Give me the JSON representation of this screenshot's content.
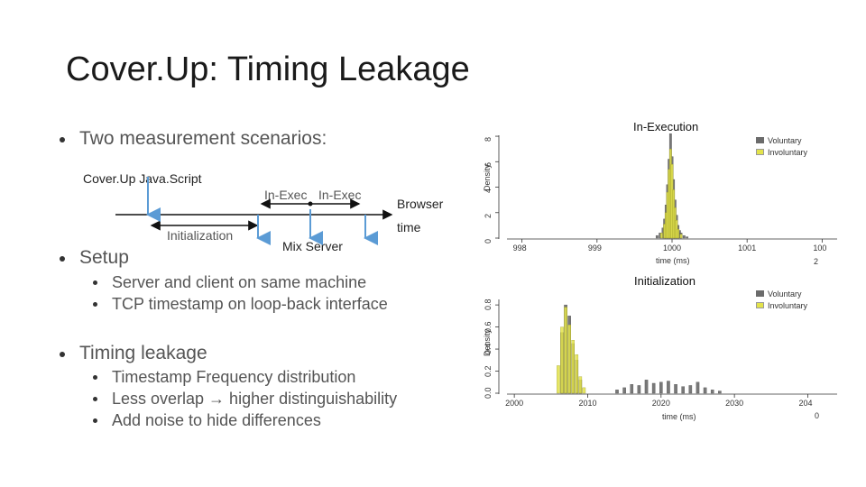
{
  "slide": {
    "title": "Cover.Up: Timing Leakage"
  },
  "bullets": {
    "scenarios": "Two measurement scenarios:",
    "setup": "Setup",
    "setup_items": [
      "Server and client on same machine",
      "TCP timestamp on loop-back interface"
    ],
    "leakage": "Timing leakage",
    "leakage_items": [
      "Timestamp Frequency distribution",
      "Less overlap → higher distinguishability",
      "Add noise to hide differences"
    ]
  },
  "diagram": {
    "coverup_js": "Cover.Up Java.Script",
    "initialization": "Initialization",
    "in_exec_1": "In-Exec",
    "in_exec_2": "In-Exec",
    "mix_server": "Mix Server",
    "browser": "Browser",
    "time": "time",
    "arrow_color": "#5b9bd5"
  },
  "plots": {
    "voluntary_color": "#6b6b6b",
    "involuntary_color": "#e3e34a",
    "top": {
      "title": "In-Execution",
      "ylabel": "Density",
      "xlabel": "time (ms)",
      "yticks": [
        "0",
        "2",
        "4",
        "6",
        "8"
      ],
      "xticks": [
        "998",
        "999",
        "1000",
        "1001",
        "100"
      ],
      "xtick_wrap": "2",
      "legend": [
        "Voluntary",
        "Involuntary"
      ]
    },
    "bottom": {
      "title": "Initialization",
      "ylabel": "Density",
      "xlabel": "time (ms)",
      "yticks": [
        "0.0",
        "0.2",
        "0.4",
        "0.6",
        "0.8"
      ],
      "xticks": [
        "2000",
        "2010",
        "2020",
        "2030",
        "204"
      ],
      "xtick_wrap": "0",
      "legend": [
        "Voluntary",
        "Involuntary"
      ]
    }
  },
  "chart_data": [
    {
      "type": "bar",
      "title": "In-Execution",
      "xlabel": "time (ms)",
      "ylabel": "Density",
      "xlim": [
        997.8,
        1002.2
      ],
      "ylim": [
        0,
        8.5
      ],
      "legend": "top-right",
      "series": [
        {
          "name": "Voluntary",
          "x": [
            999.8,
            999.84,
            999.88,
            999.9,
            999.92,
            999.94,
            999.96,
            999.98,
            1000.0,
            1000.02,
            1000.04,
            1000.06,
            1000.08,
            1000.1,
            1000.12,
            1000.16,
            1000.2
          ],
          "values": [
            0.2,
            0.4,
            0.8,
            1.5,
            2.6,
            4.2,
            6.2,
            8.2,
            6.4,
            4.6,
            3.0,
            1.8,
            1.0,
            0.6,
            0.4,
            0.2,
            0.1
          ]
        },
        {
          "name": "Involuntary",
          "x": [
            999.86,
            999.9,
            999.92,
            999.94,
            999.96,
            999.98,
            1000.0,
            1000.02,
            1000.04,
            1000.06,
            1000.08,
            1000.12
          ],
          "values": [
            0.4,
            1.1,
            2.0,
            3.6,
            5.4,
            7.0,
            5.8,
            3.8,
            2.4,
            1.4,
            0.7,
            0.3
          ]
        }
      ]
    },
    {
      "type": "bar",
      "title": "Initialization",
      "xlabel": "time (ms)",
      "ylabel": "Density",
      "xlim": [
        1999,
        2044
      ],
      "ylim": [
        0,
        0.85
      ],
      "legend": "top-right",
      "series": [
        {
          "name": "Voluntary",
          "x": [
            2006.5,
            2007.0,
            2007.5,
            2008.0,
            2008.5,
            2009.0,
            2014.0,
            2015.0,
            2016.0,
            2017.0,
            2018.0,
            2019.0,
            2020.0,
            2021.0,
            2022.0,
            2023.0,
            2024.0,
            2025.0,
            2026.0,
            2027.0,
            2028.0
          ],
          "values": [
            0.55,
            0.8,
            0.7,
            0.45,
            0.3,
            0.12,
            0.03,
            0.05,
            0.08,
            0.07,
            0.12,
            0.09,
            0.1,
            0.11,
            0.08,
            0.06,
            0.07,
            0.1,
            0.05,
            0.03,
            0.02
          ]
        },
        {
          "name": "Involuntary",
          "x": [
            2006.0,
            2006.5,
            2007.0,
            2007.5,
            2008.0,
            2008.5,
            2009.0,
            2009.5
          ],
          "values": [
            0.25,
            0.6,
            0.78,
            0.62,
            0.48,
            0.35,
            0.15,
            0.05
          ]
        }
      ]
    }
  ]
}
